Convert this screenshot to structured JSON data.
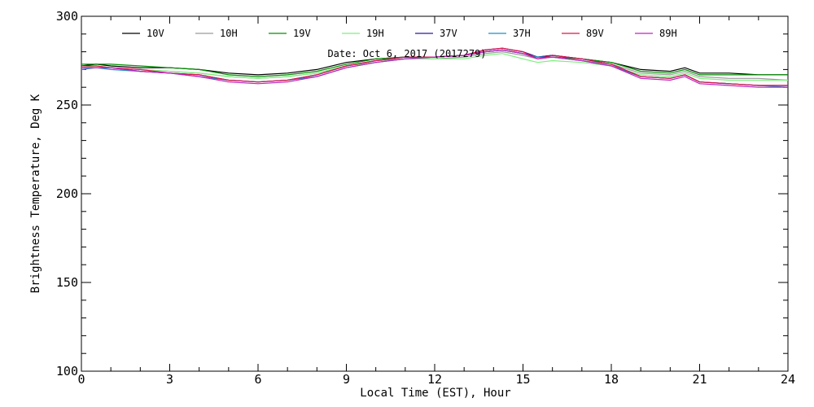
{
  "chart_data": {
    "type": "line",
    "title": "",
    "xlabel": "Local Time (EST), Hour",
    "ylabel": "Brightness Temperature, Deg K",
    "xlim": [
      0,
      24
    ],
    "ylim": [
      100,
      300
    ],
    "xticks": [
      0,
      3,
      6,
      9,
      12,
      15,
      18,
      21,
      24
    ],
    "yticks": [
      100,
      150,
      200,
      250,
      300
    ],
    "annotation": "Date: Oct  6, 2017 (2017279)",
    "grid": false,
    "legend_position": "top",
    "series": [
      {
        "name": "10V",
        "color": "#000000",
        "x": [
          0,
          0.5,
          1,
          2,
          3,
          4,
          5,
          6,
          7,
          8,
          9,
          10,
          11,
          12,
          13,
          13.7,
          14.3,
          15,
          15.5,
          16,
          17,
          18,
          19,
          20,
          20.5,
          21,
          22,
          23,
          24
        ],
        "y": [
          272,
          273,
          272,
          271,
          271,
          270,
          268,
          267,
          268,
          270,
          274,
          276,
          277,
          277,
          278,
          280,
          281,
          279,
          277,
          278,
          276,
          274,
          270,
          269,
          271,
          268,
          268,
          267,
          267
        ]
      },
      {
        "name": "10H",
        "color": "#9a9a9a",
        "x": [
          0,
          0.5,
          1,
          2,
          3,
          4,
          5,
          6,
          7,
          8,
          9,
          10,
          11,
          12,
          13,
          13.7,
          14.3,
          15,
          15.5,
          16,
          17,
          18,
          19,
          20,
          20.5,
          21,
          22,
          23,
          24
        ],
        "y": [
          271,
          272,
          271,
          270,
          269,
          268,
          266,
          265,
          266,
          268,
          272,
          275,
          276,
          276,
          277,
          279,
          280,
          278,
          276,
          277,
          275,
          273,
          268,
          267,
          269,
          266,
          265,
          265,
          264
        ]
      },
      {
        "name": "19V",
        "color": "#009000",
        "x": [
          0,
          0.5,
          1,
          2,
          3,
          4,
          5,
          6,
          7,
          8,
          9,
          10,
          11,
          12,
          13,
          13.7,
          14.3,
          15,
          15.5,
          16,
          17,
          18,
          19,
          20,
          20.5,
          21,
          22,
          23,
          24
        ],
        "y": [
          273,
          273,
          273,
          272,
          271,
          270,
          267,
          266,
          267,
          269,
          273,
          276,
          277,
          277,
          278,
          280,
          281,
          279,
          277,
          277,
          276,
          274,
          269,
          268,
          270,
          267,
          267,
          267,
          267
        ]
      },
      {
        "name": "19H",
        "color": "#7cf07c",
        "x": [
          0,
          0.5,
          1,
          2,
          3,
          4,
          5,
          6,
          7,
          8,
          9,
          10,
          11,
          12,
          13,
          13.7,
          14.3,
          15,
          15.5,
          16,
          17,
          18,
          19,
          20,
          20.5,
          21,
          22,
          23,
          24
        ],
        "y": [
          271,
          272,
          271,
          270,
          269,
          268,
          266,
          265,
          266,
          268,
          272,
          274,
          276,
          276,
          276,
          278,
          279,
          276,
          274,
          275,
          274,
          272,
          267,
          266,
          268,
          265,
          264,
          264,
          264
        ]
      },
      {
        "name": "37V",
        "color": "#2a1a9a",
        "x": [
          0,
          0.5,
          1,
          2,
          3,
          4,
          5,
          6,
          7,
          8,
          9,
          10,
          11,
          12,
          13,
          13.7,
          14.3,
          15,
          15.5,
          16,
          17,
          18,
          19,
          20,
          20.5,
          21,
          22,
          23,
          24
        ],
        "y": [
          271,
          271,
          271,
          269,
          268,
          267,
          264,
          263,
          264,
          267,
          272,
          275,
          277,
          277,
          278,
          281,
          282,
          280,
          277,
          278,
          276,
          273,
          266,
          265,
          267,
          263,
          262,
          261,
          261
        ]
      },
      {
        "name": "37H",
        "color": "#1f8fc8",
        "x": [
          0,
          0.5,
          1,
          2,
          3,
          4,
          5,
          6,
          7,
          8,
          9,
          10,
          11,
          12,
          13,
          13.7,
          14.3,
          15,
          15.5,
          16,
          17,
          18,
          19,
          20,
          20.5,
          21,
          22,
          23,
          24
        ],
        "y": [
          270,
          271,
          270,
          269,
          268,
          266,
          264,
          263,
          264,
          266,
          271,
          274,
          276,
          277,
          278,
          280,
          281,
          279,
          277,
          277,
          275,
          272,
          266,
          265,
          267,
          263,
          262,
          261,
          260
        ]
      },
      {
        "name": "89V",
        "color": "#e0104a",
        "x": [
          0,
          0.5,
          1,
          2,
          3,
          4,
          5,
          6,
          7,
          8,
          9,
          10,
          11,
          12,
          13,
          13.7,
          14.3,
          15,
          15.5,
          16,
          17,
          18,
          19,
          20,
          20.5,
          21,
          22,
          23,
          24
        ],
        "y": [
          272,
          272,
          271,
          270,
          268,
          267,
          264,
          263,
          264,
          267,
          272,
          275,
          277,
          277,
          278,
          281,
          282,
          280,
          276,
          278,
          276,
          273,
          266,
          265,
          267,
          263,
          262,
          261,
          261
        ]
      },
      {
        "name": "89H",
        "color": "#c020c0",
        "x": [
          0,
          0.5,
          1,
          2,
          3,
          4,
          5,
          6,
          7,
          8,
          9,
          10,
          11,
          12,
          13,
          13.7,
          14.3,
          15,
          15.5,
          16,
          17,
          18,
          19,
          20,
          20.5,
          21,
          22,
          23,
          24
        ],
        "y": [
          271,
          271,
          271,
          269,
          268,
          266,
          263,
          262,
          263,
          266,
          271,
          274,
          276,
          277,
          278,
          280,
          281,
          279,
          276,
          277,
          275,
          272,
          265,
          264,
          266,
          262,
          261,
          260,
          260
        ]
      }
    ]
  }
}
